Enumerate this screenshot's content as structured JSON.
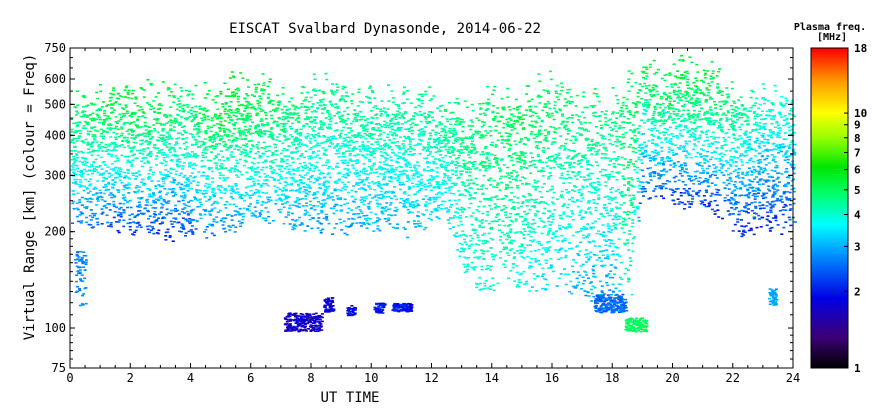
{
  "chart_data": {
    "type": "scatter",
    "title": "EISCAT Svalbard Dynasonde, 2014-06-22",
    "xlabel": "UT TIME",
    "ylabel": "Virtual Range [km] (colour = Freq)",
    "xlim": [
      0,
      24
    ],
    "ylim": [
      75,
      750
    ],
    "y_scale": "log",
    "x_ticks": [
      "0",
      "2",
      "4",
      "6",
      "8",
      "10",
      "12",
      "14",
      "16",
      "18",
      "20",
      "22",
      "24"
    ],
    "y_ticks": [
      "75",
      "100",
      "200",
      "300",
      "400",
      "500",
      "600",
      "750"
    ],
    "colorbar": {
      "title_line1": "Plasma freq.",
      "title_line2": "[MHz]",
      "ticks": [
        "1",
        "2",
        "3",
        "4",
        "5",
        "6",
        "7",
        "8",
        "9",
        "10",
        "18"
      ],
      "range": [
        1,
        18
      ],
      "scale": "log"
    },
    "lower_trace": [
      {
        "t": 0.0,
        "h": 225,
        "f": 2.7
      },
      {
        "t": 0.5,
        "h": 215,
        "f": 2.5
      },
      {
        "t": 1.0,
        "h": 218,
        "f": 2.3
      },
      {
        "t": 1.5,
        "h": 212,
        "f": 2.2
      },
      {
        "t": 2.0,
        "h": 205,
        "f": 2.1
      },
      {
        "t": 2.5,
        "h": 205,
        "f": 2.2
      },
      {
        "t": 3.0,
        "h": 200,
        "f": 2.0
      },
      {
        "t": 3.5,
        "h": 198,
        "f": 2.0
      },
      {
        "t": 4.0,
        "h": 205,
        "f": 2.4
      },
      {
        "t": 4.5,
        "h": 195,
        "f": 2.4
      },
      {
        "t": 5.0,
        "h": 205,
        "f": 2.6
      },
      {
        "t": 5.5,
        "h": 215,
        "f": 2.7
      },
      {
        "t": 6.0,
        "h": 225,
        "f": 2.9
      },
      {
        "t": 6.5,
        "h": 230,
        "f": 3.0
      },
      {
        "t": 7.0,
        "h": 225,
        "f": 3.0
      },
      {
        "t": 7.5,
        "h": 215,
        "f": 2.9
      },
      {
        "t": 8.0,
        "h": 210,
        "f": 2.8
      },
      {
        "t": 8.5,
        "h": 205,
        "f": 2.8
      },
      {
        "t": 9.0,
        "h": 205,
        "f": 2.8
      },
      {
        "t": 9.5,
        "h": 210,
        "f": 2.9
      },
      {
        "t": 10.0,
        "h": 215,
        "f": 3.0
      },
      {
        "t": 10.5,
        "h": 215,
        "f": 3.0
      },
      {
        "t": 11.0,
        "h": 210,
        "f": 3.0
      },
      {
        "t": 11.5,
        "h": 205,
        "f": 3.0
      },
      {
        "t": 12.0,
        "h": 225,
        "f": 3.2
      },
      {
        "t": 12.5,
        "h": 230,
        "f": 3.3
      },
      {
        "t": 13.0,
        "h": 160,
        "f": 3.6
      },
      {
        "t": 13.5,
        "h": 130,
        "f": 3.8
      },
      {
        "t": 14.0,
        "h": 140,
        "f": 3.9
      },
      {
        "t": 14.5,
        "h": 150,
        "f": 4.1
      },
      {
        "t": 15.0,
        "h": 140,
        "f": 3.6
      },
      {
        "t": 15.5,
        "h": 130,
        "f": 3.4
      },
      {
        "t": 16.0,
        "h": 140,
        "f": 3.3
      },
      {
        "t": 16.5,
        "h": 135,
        "f": 3.2
      },
      {
        "t": 17.0,
        "h": 125,
        "f": 2.9
      },
      {
        "t": 17.5,
        "h": 122,
        "f": 2.8
      },
      {
        "t": 18.0,
        "h": 122,
        "f": 2.8
      },
      {
        "t": 18.5,
        "h": 103,
        "f": 4.5
      },
      {
        "t": 19.0,
        "h": 270,
        "f": 2.1
      },
      {
        "t": 19.5,
        "h": 265,
        "f": 2.1
      },
      {
        "t": 20.0,
        "h": 255,
        "f": 2.0
      },
      {
        "t": 20.5,
        "h": 250,
        "f": 2.0
      },
      {
        "t": 21.0,
        "h": 245,
        "f": 2.0
      },
      {
        "t": 21.5,
        "h": 240,
        "f": 2.0
      },
      {
        "t": 22.0,
        "h": 210,
        "f": 2.1
      },
      {
        "t": 22.5,
        "h": 205,
        "f": 2.0
      },
      {
        "t": 23.0,
        "h": 215,
        "f": 2.0
      },
      {
        "t": 23.5,
        "h": 205,
        "f": 2.0
      },
      {
        "t": 24.0,
        "h": 215,
        "f": 2.1
      }
    ],
    "upper_trace": [
      {
        "t": 0.0,
        "h": 500,
        "f": 5.0
      },
      {
        "t": 1.0,
        "h": 520,
        "f": 5.3
      },
      {
        "t": 2.0,
        "h": 530,
        "f": 5.5
      },
      {
        "t": 3.0,
        "h": 540,
        "f": 5.5
      },
      {
        "t": 4.0,
        "h": 520,
        "f": 5.0
      },
      {
        "t": 5.0,
        "h": 560,
        "f": 5.8
      },
      {
        "t": 6.0,
        "h": 560,
        "f": 5.5
      },
      {
        "t": 7.0,
        "h": 540,
        "f": 5.0
      },
      {
        "t": 8.0,
        "h": 560,
        "f": 4.8
      },
      {
        "t": 9.0,
        "h": 540,
        "f": 4.7
      },
      {
        "t": 10.0,
        "h": 520,
        "f": 4.6
      },
      {
        "t": 11.0,
        "h": 500,
        "f": 4.5
      },
      {
        "t": 12.0,
        "h": 520,
        "f": 4.6
      },
      {
        "t": 13.0,
        "h": 450,
        "f": 4.8
      },
      {
        "t": 14.0,
        "h": 520,
        "f": 5.0
      },
      {
        "t": 15.0,
        "h": 560,
        "f": 5.3
      },
      {
        "t": 16.0,
        "h": 560,
        "f": 5.0
      },
      {
        "t": 17.0,
        "h": 520,
        "f": 4.8
      },
      {
        "t": 18.0,
        "h": 500,
        "f": 4.8
      },
      {
        "t": 19.0,
        "h": 620,
        "f": 5.3
      },
      {
        "t": 20.0,
        "h": 640,
        "f": 5.5
      },
      {
        "t": 21.0,
        "h": 620,
        "f": 5.5
      },
      {
        "t": 22.0,
        "h": 560,
        "f": 5.0
      },
      {
        "t": 23.0,
        "h": 520,
        "f": 4.2
      },
      {
        "t": 24.0,
        "h": 480,
        "f": 4.0
      }
    ],
    "e_layer_patches": [
      {
        "t0": 0.15,
        "t1": 0.5,
        "h0": 118,
        "h1": 175,
        "f": 2.7
      },
      {
        "t0": 7.1,
        "t1": 8.3,
        "h0": 98,
        "h1": 112,
        "f": 1.7
      },
      {
        "t0": 8.4,
        "t1": 8.7,
        "h0": 112,
        "h1": 125,
        "f": 1.8
      },
      {
        "t0": 9.2,
        "t1": 9.4,
        "h0": 110,
        "h1": 118,
        "f": 1.9
      },
      {
        "t0": 10.1,
        "t1": 10.4,
        "h0": 112,
        "h1": 120,
        "f": 2.0
      },
      {
        "t0": 10.7,
        "t1": 11.3,
        "h0": 113,
        "h1": 120,
        "f": 2.0
      },
      {
        "t0": 17.4,
        "t1": 18.4,
        "h0": 112,
        "h1": 128,
        "f": 2.5
      },
      {
        "t0": 18.4,
        "t1": 19.1,
        "h0": 98,
        "h1": 108,
        "f": 5.0
      },
      {
        "t0": 23.2,
        "t1": 23.4,
        "h0": 118,
        "h1": 135,
        "f": 3.0
      }
    ]
  }
}
